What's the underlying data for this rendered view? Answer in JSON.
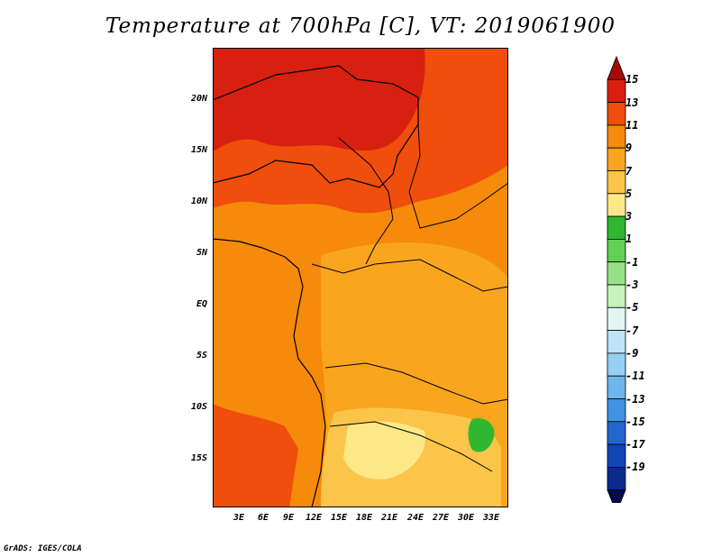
{
  "title": "Temperature at 700hPa [C], VT: 2019061900",
  "footer": "GrADS: IGES/COLA",
  "map": {
    "lat_labels": [
      "20N",
      "15N",
      "10N",
      "5N",
      "EQ",
      "5S",
      "10S",
      "15S"
    ],
    "lon_labels": [
      "3E",
      "6E",
      "9E",
      "12E",
      "15E",
      "18E",
      "21E",
      "24E",
      "27E",
      "30E",
      "33E"
    ]
  },
  "colorbar": {
    "labels": [
      "15",
      "13",
      "11",
      "9",
      "7",
      "5",
      "3",
      "1",
      "-1",
      "-3",
      "-5",
      "-7",
      "-9",
      "-11",
      "-13",
      "-15",
      "-17",
      "-19"
    ],
    "colors": [
      "#a50a0a",
      "#d7200f",
      "#ef4e0c",
      "#f58a0b",
      "#faa51e",
      "#fbc54a",
      "#fde888",
      "#2fb82f",
      "#62d054",
      "#97e286",
      "#c7f2bd",
      "#e2f6f3",
      "#bfe3f8",
      "#96cff5",
      "#6db6ee",
      "#4092e2",
      "#2166cf",
      "#0f45b6",
      "#0a2a8c",
      "#020a4d"
    ]
  },
  "colors": {
    "hot": "#d7200f",
    "warm": "#ef4e0c",
    "orange": "#f58a0b",
    "yellow_orange": "#faa51e",
    "pale": "#fde888",
    "green": "#2fb82f"
  }
}
